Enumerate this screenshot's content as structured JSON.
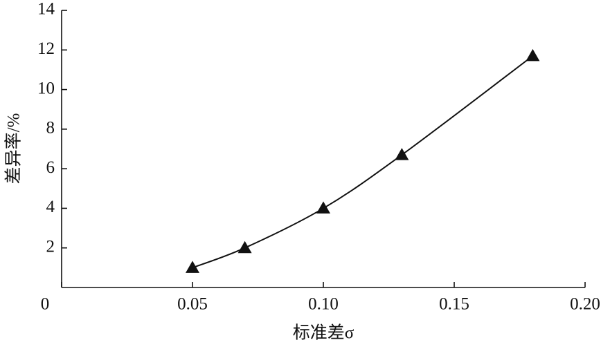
{
  "chart_data": {
    "type": "line",
    "x_label": "标准差σ",
    "y_label": "差异率/%",
    "x": [
      0.05,
      0.07,
      0.1,
      0.13,
      0.18
    ],
    "series": [
      {
        "color": "#111111",
        "values": [
          1.0,
          2.0,
          4.0,
          6.7,
          11.7
        ]
      }
    ],
    "xlim": [
      0,
      0.2
    ],
    "ylim": [
      0,
      14
    ],
    "xticks": [
      0,
      0.05,
      {
        "value": 0.1,
        "label": "0.10"
      },
      0.15,
      {
        "value": 0.2,
        "label": "0.20"
      }
    ],
    "yticks": [
      2,
      4,
      6,
      8,
      10,
      12,
      14
    ],
    "marker": "triangle",
    "smooth": true
  }
}
